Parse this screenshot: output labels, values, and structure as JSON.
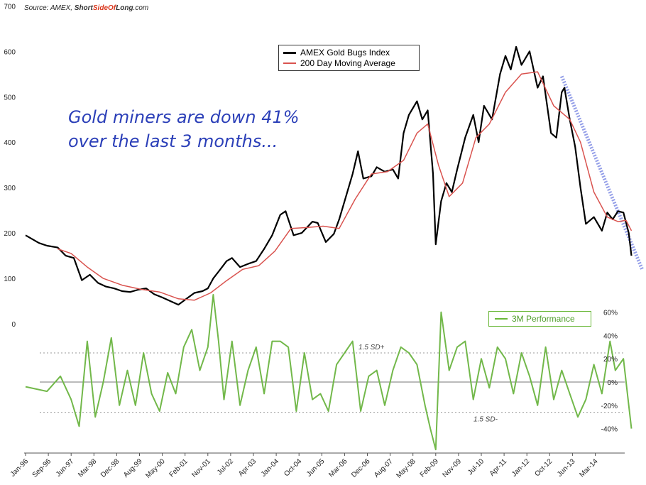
{
  "source": {
    "prefix": "Source: AMEX, ",
    "brand_part1": "Short",
    "brand_part2": "SideOf",
    "brand_part3": "Long",
    "suffix": ".com"
  },
  "annotation": {
    "line1": "Gold miners are down 41%",
    "line2": "over the last 3 months..."
  },
  "colors": {
    "index": "#000000",
    "ma200": "#d9534f",
    "perf": "#72b84a",
    "trendline": "#3b4fd6",
    "annotation": "#2b3fb8"
  },
  "chart_data": [
    {
      "type": "line",
      "title": "",
      "xlabel": "",
      "ylabel": "",
      "ylim": [
        0,
        700
      ],
      "y_ticks": [
        "0",
        "100",
        "200",
        "300",
        "400",
        "500",
        "600",
        "700"
      ],
      "x_ticks": [
        "Jan-96",
        "Sep-96",
        "Jun-97",
        "Mar-98",
        "Dec-98",
        "Aug-99",
        "May-00",
        "Feb-01",
        "Nov-01",
        "Jul-02",
        "Apr-03",
        "Jan-04",
        "Oct-04",
        "Jun-05",
        "Mar-06",
        "Dec-06",
        "Aug-07",
        "May-08",
        "Feb-09",
        "Nov-09",
        "Jul-10",
        "Apr-11",
        "Jan-12",
        "Oct-12",
        "Jun-13",
        "Mar-14"
      ],
      "legend_position": "top-center",
      "series": [
        {
          "name": "AMEX Gold Bugs Index",
          "points": [
            [
              "1996-01",
              195
            ],
            [
              "1996-06",
              178
            ],
            [
              "1996-09",
              172
            ],
            [
              "1997-01",
              168
            ],
            [
              "1997-04",
              150
            ],
            [
              "1997-07",
              145
            ],
            [
              "1997-10",
              96
            ],
            [
              "1998-01",
              108
            ],
            [
              "1998-04",
              90
            ],
            [
              "1998-07",
              82
            ],
            [
              "1998-10",
              78
            ],
            [
              "1999-01",
              72
            ],
            [
              "1999-04",
              70
            ],
            [
              "1999-07",
              75
            ],
            [
              "1999-10",
              78
            ],
            [
              "2000-01",
              65
            ],
            [
              "2000-04",
              58
            ],
            [
              "2000-07",
              50
            ],
            [
              "2000-10",
              42
            ],
            [
              "2001-01",
              55
            ],
            [
              "2001-04",
              68
            ],
            [
              "2001-07",
              72
            ],
            [
              "2001-09",
              78
            ],
            [
              "2001-11",
              100
            ],
            [
              "2002-01",
              115
            ],
            [
              "2002-04",
              138
            ],
            [
              "2002-06",
              145
            ],
            [
              "2002-09",
              125
            ],
            [
              "2002-12",
              132
            ],
            [
              "2003-03",
              138
            ],
            [
              "2003-06",
              165
            ],
            [
              "2003-09",
              195
            ],
            [
              "2003-12",
              240
            ],
            [
              "2004-02",
              248
            ],
            [
              "2004-05",
              195
            ],
            [
              "2004-08",
              200
            ],
            [
              "2004-12",
              225
            ],
            [
              "2005-02",
              222
            ],
            [
              "2005-05",
              180
            ],
            [
              "2005-08",
              198
            ],
            [
              "2005-10",
              230
            ],
            [
              "2005-12",
              270
            ],
            [
              "2006-03",
              330
            ],
            [
              "2006-05",
              380
            ],
            [
              "2006-07",
              320
            ],
            [
              "2006-10",
              325
            ],
            [
              "2006-12",
              345
            ],
            [
              "2007-03",
              335
            ],
            [
              "2007-06",
              340
            ],
            [
              "2007-08",
              320
            ],
            [
              "2007-10",
              420
            ],
            [
              "2007-12",
              460
            ],
            [
              "2008-03",
              490
            ],
            [
              "2008-05",
              450
            ],
            [
              "2008-07",
              470
            ],
            [
              "2008-09",
              330
            ],
            [
              "2008-10",
              175
            ],
            [
              "2008-12",
              270
            ],
            [
              "2009-02",
              310
            ],
            [
              "2009-04",
              290
            ],
            [
              "2009-06",
              340
            ],
            [
              "2009-09",
              410
            ],
            [
              "2009-12",
              460
            ],
            [
              "2010-02",
              400
            ],
            [
              "2010-04",
              480
            ],
            [
              "2010-07",
              450
            ],
            [
              "2010-10",
              550
            ],
            [
              "2010-12",
              590
            ],
            [
              "2011-02",
              560
            ],
            [
              "2011-04",
              610
            ],
            [
              "2011-06",
              570
            ],
            [
              "2011-09",
              600
            ],
            [
              "2011-12",
              520
            ],
            [
              "2012-02",
              545
            ],
            [
              "2012-05",
              420
            ],
            [
              "2012-07",
              410
            ],
            [
              "2012-09",
              510
            ],
            [
              "2012-10",
              520
            ],
            [
              "2012-12",
              450
            ],
            [
              "2013-02",
              390
            ],
            [
              "2013-04",
              300
            ],
            [
              "2013-06",
              220
            ],
            [
              "2013-09",
              235
            ],
            [
              "2013-12",
              205
            ],
            [
              "2014-02",
              245
            ],
            [
              "2014-04",
              230
            ],
            [
              "2014-06",
              248
            ],
            [
              "2014-08",
              245
            ],
            [
              "2014-10",
              200
            ],
            [
              "2014-11",
              150
            ]
          ]
        },
        {
          "name": "200 Day Moving Average",
          "points": [
            [
              "1997-01",
              165
            ],
            [
              "1997-06",
              155
            ],
            [
              "1997-12",
              125
            ],
            [
              "1998-06",
              100
            ],
            [
              "1999-01",
              85
            ],
            [
              "1999-08",
              76
            ],
            [
              "2000-03",
              70
            ],
            [
              "2000-10",
              55
            ],
            [
              "2001-04",
              52
            ],
            [
              "2001-10",
              68
            ],
            [
              "2002-04",
              95
            ],
            [
              "2002-10",
              120
            ],
            [
              "2003-04",
              128
            ],
            [
              "2003-10",
              160
            ],
            [
              "2004-04",
              210
            ],
            [
              "2004-10",
              212
            ],
            [
              "2005-04",
              215
            ],
            [
              "2005-10",
              210
            ],
            [
              "2006-04",
              275
            ],
            [
              "2006-10",
              330
            ],
            [
              "2007-04",
              335
            ],
            [
              "2007-10",
              360
            ],
            [
              "2008-03",
              420
            ],
            [
              "2008-07",
              440
            ],
            [
              "2008-11",
              350
            ],
            [
              "2009-03",
              280
            ],
            [
              "2009-08",
              310
            ],
            [
              "2010-01",
              410
            ],
            [
              "2010-06",
              440
            ],
            [
              "2010-12",
              510
            ],
            [
              "2011-06",
              550
            ],
            [
              "2011-12",
              555
            ],
            [
              "2012-06",
              480
            ],
            [
              "2012-12",
              450
            ],
            [
              "2013-04",
              400
            ],
            [
              "2013-09",
              290
            ],
            [
              "2014-02",
              235
            ],
            [
              "2014-06",
              225
            ],
            [
              "2014-09",
              228
            ],
            [
              "2014-11",
              205
            ]
          ]
        },
        {
          "name": "",
          "style": "trendline",
          "points": [
            [
              "2012-09",
              545
            ],
            [
              "2015-03",
              120
            ]
          ]
        }
      ]
    },
    {
      "type": "line",
      "title": "",
      "xlabel": "",
      "ylabel": "",
      "ylim": [
        -60,
        60
      ],
      "y_ticks": [
        "60%",
        "40%",
        "20%",
        "0%",
        "-20%",
        "-40%"
      ],
      "legend_position": "top-right",
      "reference_lines": [
        {
          "value": 25,
          "label": "1.5 SD+"
        },
        {
          "value": 0,
          "label": ""
        },
        {
          "value": -26,
          "label": "1.5 SD-"
        }
      ],
      "series": [
        {
          "name": "3M Performance",
          "points": [
            [
              "1996-01",
              -4
            ],
            [
              "1996-09",
              -8
            ],
            [
              "1997-02",
              5
            ],
            [
              "1997-06",
              -15
            ],
            [
              "1997-09",
              -38
            ],
            [
              "1997-12",
              35
            ],
            [
              "1998-03",
              -30
            ],
            [
              "1998-06",
              0
            ],
            [
              "1998-09",
              38
            ],
            [
              "1998-12",
              -20
            ],
            [
              "1999-03",
              10
            ],
            [
              "1999-06",
              -20
            ],
            [
              "1999-09",
              25
            ],
            [
              "1999-12",
              -10
            ],
            [
              "2000-03",
              -25
            ],
            [
              "2000-06",
              8
            ],
            [
              "2000-09",
              -10
            ],
            [
              "2000-12",
              30
            ],
            [
              "2001-03",
              45
            ],
            [
              "2001-06",
              10
            ],
            [
              "2001-09",
              30
            ],
            [
              "2001-11",
              75
            ],
            [
              "2002-01",
              35
            ],
            [
              "2002-03",
              -15
            ],
            [
              "2002-06",
              35
            ],
            [
              "2002-09",
              -20
            ],
            [
              "2002-12",
              10
            ],
            [
              "2003-03",
              30
            ],
            [
              "2003-06",
              -10
            ],
            [
              "2003-09",
              35
            ],
            [
              "2003-12",
              35
            ],
            [
              "2004-03",
              30
            ],
            [
              "2004-06",
              -25
            ],
            [
              "2004-09",
              25
            ],
            [
              "2004-12",
              -15
            ],
            [
              "2005-03",
              -10
            ],
            [
              "2005-06",
              -25
            ],
            [
              "2005-09",
              15
            ],
            [
              "2005-12",
              25
            ],
            [
              "2006-03",
              35
            ],
            [
              "2006-06",
              -25
            ],
            [
              "2006-09",
              5
            ],
            [
              "2006-12",
              10
            ],
            [
              "2007-03",
              -20
            ],
            [
              "2007-06",
              10
            ],
            [
              "2007-09",
              30
            ],
            [
              "2007-12",
              25
            ],
            [
              "2008-03",
              15
            ],
            [
              "2008-06",
              -20
            ],
            [
              "2008-08",
              -40
            ],
            [
              "2008-10",
              -58
            ],
            [
              "2008-12",
              60
            ],
            [
              "2009-03",
              10
            ],
            [
              "2009-06",
              30
            ],
            [
              "2009-09",
              35
            ],
            [
              "2009-12",
              -15
            ],
            [
              "2010-03",
              20
            ],
            [
              "2010-06",
              -5
            ],
            [
              "2010-09",
              30
            ],
            [
              "2010-12",
              20
            ],
            [
              "2011-03",
              -10
            ],
            [
              "2011-06",
              25
            ],
            [
              "2011-09",
              5
            ],
            [
              "2011-12",
              -20
            ],
            [
              "2012-03",
              30
            ],
            [
              "2012-06",
              -15
            ],
            [
              "2012-09",
              10
            ],
            [
              "2012-12",
              -10
            ],
            [
              "2013-03",
              -30
            ],
            [
              "2013-06",
              -15
            ],
            [
              "2013-09",
              15
            ],
            [
              "2013-12",
              -10
            ],
            [
              "2014-03",
              35
            ],
            [
              "2014-05",
              10
            ],
            [
              "2014-08",
              20
            ],
            [
              "2014-10",
              -20
            ],
            [
              "2014-11",
              -40
            ]
          ]
        }
      ]
    }
  ]
}
